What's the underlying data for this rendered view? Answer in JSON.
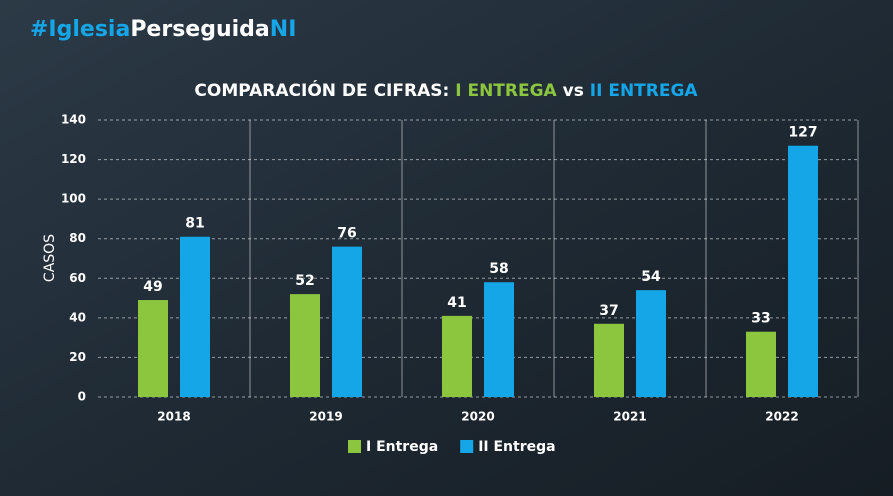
{
  "header": {
    "hashtag_parts": [
      "#Iglesia",
      "Perseguida",
      "NI"
    ]
  },
  "chart_data": {
    "type": "bar",
    "title_parts": [
      "COMPARACIÓN DE CIFRAS:",
      "I ENTREGA",
      "vs",
      "II ENTREGA"
    ],
    "y_label": "CASOS",
    "categories": [
      "2018",
      "2019",
      "2020",
      "2021",
      "2022"
    ],
    "series": [
      {
        "name": "I Entrega",
        "color": "#8cc63f",
        "values": [
          49,
          52,
          41,
          37,
          33
        ]
      },
      {
        "name": "II Entrega",
        "color": "#15a6e8",
        "values": [
          81,
          76,
          58,
          54,
          127
        ]
      }
    ],
    "ylim": [
      0,
      140
    ],
    "yticks": [
      0,
      20,
      40,
      60,
      80,
      100,
      120,
      140
    ],
    "grid": true
  }
}
